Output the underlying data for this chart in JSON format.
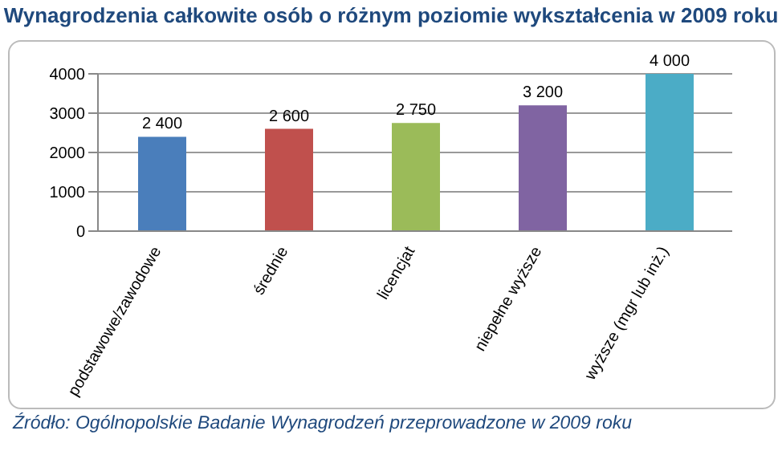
{
  "chart_data": {
    "type": "bar",
    "title": "Wynagrodzenia całkowite osób o różnym poziomie wykształcenia w 2009 roku",
    "categories": [
      "podstawowe/zawodowe",
      "średnie",
      "licencjat",
      "niepełne wyższe",
      "wyższe (mgr lub inż.)"
    ],
    "values": [
      2400,
      2600,
      2750,
      3200,
      4000
    ],
    "colors": [
      "#4a7ebb",
      "#c0504d",
      "#9bbb59",
      "#8064a2",
      "#4bacc6"
    ],
    "value_labels": [
      "2 400",
      "2 600",
      "2 750",
      "3 200",
      "4 000"
    ],
    "ylim": [
      0,
      4000
    ],
    "yticks": [
      0,
      1000,
      2000,
      3000,
      4000
    ],
    "grid": "y",
    "annotations": [
      "Źródło: Ogólnopolskie Badanie Wynagrodzeń przeprowadzone w 2009 roku"
    ]
  }
}
